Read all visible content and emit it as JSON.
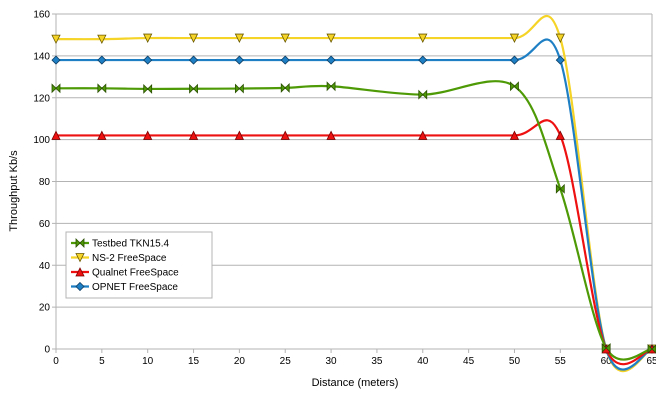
{
  "chart_data": {
    "type": "line",
    "xlabel": "Distance (meters)",
    "ylabel": "Throughput Kb/s",
    "xlim": [
      0,
      65
    ],
    "ylim": [
      0,
      160
    ],
    "xticks": [
      0,
      5,
      10,
      15,
      20,
      25,
      30,
      35,
      40,
      45,
      50,
      55,
      60,
      65
    ],
    "yticks": [
      0,
      20,
      40,
      60,
      80,
      100,
      120,
      140,
      160
    ],
    "grid": "horizontal",
    "legend_position": "lower-left",
    "series": [
      {
        "name": "Testbed TKN15.4",
        "color": "#4e9a06",
        "marker": "bowtie",
        "x": [
          0,
          5,
          10,
          15,
          20,
          25,
          30,
          40,
          50,
          55,
          60,
          65
        ],
        "y": [
          124.5,
          124.5,
          124.2,
          124.3,
          124.4,
          124.7,
          125.5,
          121.5,
          125.5,
          76.5,
          0.5,
          0
        ]
      },
      {
        "name": "NS-2 FreeSpace",
        "color": "#f5d327",
        "marker": "triangle-down",
        "x": [
          0,
          5,
          10,
          15,
          20,
          25,
          30,
          40,
          50,
          55,
          60,
          65
        ],
        "y": [
          148,
          148,
          148.5,
          148.5,
          148.5,
          148.5,
          148.5,
          148.5,
          148.5,
          148.5,
          0,
          0
        ]
      },
      {
        "name": "Qualnet FreeSpace",
        "color": "#ee1111",
        "marker": "triangle-up",
        "x": [
          0,
          5,
          10,
          15,
          20,
          25,
          30,
          40,
          50,
          55,
          60,
          65
        ],
        "y": [
          102,
          102,
          102,
          102,
          102,
          102,
          102,
          102,
          102,
          102,
          0,
          0
        ]
      },
      {
        "name": "OPNET FreeSpace",
        "color": "#1f7fc4",
        "marker": "diamond",
        "x": [
          0,
          5,
          10,
          15,
          20,
          25,
          30,
          40,
          50,
          55,
          60,
          65
        ],
        "y": [
          138,
          138,
          138,
          138,
          138,
          138,
          138,
          138,
          138,
          138,
          0,
          0
        ]
      }
    ]
  }
}
